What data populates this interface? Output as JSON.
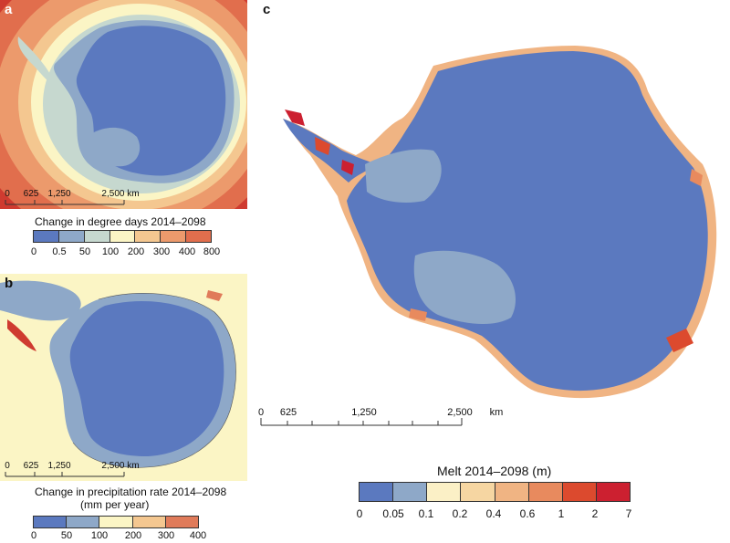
{
  "panel_a": {
    "label": "a",
    "scale": [
      "0",
      "625",
      "1,250",
      "2,500 km"
    ],
    "colorbar_title": "Change in degree days 2014–2098",
    "ticks": [
      "0",
      "0.5",
      "50",
      "100",
      "200",
      "300",
      "400",
      "800"
    ],
    "colors": [
      "#5b79bf",
      "#8ea8c8",
      "#c6d8cf",
      "#fbf5c5",
      "#f4c790",
      "#ec9a6c",
      "#e16e4d",
      "#cf3b30"
    ]
  },
  "panel_b": {
    "label": "b",
    "scale": [
      "0",
      "625",
      "1,250",
      "2,500 km"
    ],
    "colorbar_title_line1": "Change in precipitation rate 2014–2098",
    "colorbar_title_line2": "(mm per year)",
    "ticks": [
      "0",
      "50",
      "100",
      "200",
      "300",
      "400"
    ],
    "colors": [
      "#5b79bf",
      "#8ea8c8",
      "#fbf5c5",
      "#f4c790",
      "#e07b5a",
      "#cf3b30"
    ]
  },
  "panel_c": {
    "label": "c",
    "scale": [
      "0",
      "625",
      "1,250",
      "2,500",
      "km"
    ],
    "colorbar_title": "Melt 2014–2098 (m)",
    "ticks": [
      "0",
      "0.05",
      "0.1",
      "0.2",
      "0.4",
      "0.6",
      "1",
      "2",
      "7"
    ],
    "colors": [
      "#5b79bf",
      "#8ea8c8",
      "#fbf0c6",
      "#f6d6a2",
      "#f0b483",
      "#e88a5e",
      "#dc4a2e",
      "#cc2030",
      "#9e1c26"
    ]
  }
}
